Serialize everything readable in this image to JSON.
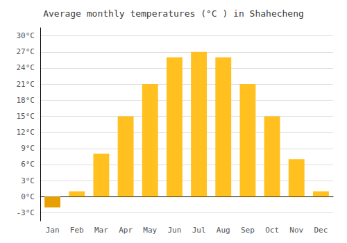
{
  "chart_data": {
    "type": "bar",
    "title": "Average monthly temperatures (°C ) in Shahecheng",
    "categories": [
      "Jan",
      "Feb",
      "Mar",
      "Apr",
      "May",
      "Jun",
      "Jul",
      "Aug",
      "Sep",
      "Oct",
      "Nov",
      "Dec"
    ],
    "values": [
      -2,
      1,
      8,
      15,
      21,
      26,
      27,
      26,
      21,
      15,
      7,
      1
    ],
    "colors": [
      "#E8A000",
      "#FFC020",
      "#FFC020",
      "#FFC020",
      "#FFC020",
      "#FFC020",
      "#FFC020",
      "#FFC020",
      "#FFC020",
      "#FFC020",
      "#FFC020",
      "#FFC020"
    ],
    "ylim": [
      -4.5,
      31.5
    ],
    "yticks": [
      {
        "value": -3,
        "label": "-3°C"
      },
      {
        "value": 0,
        "label": "0°C"
      },
      {
        "value": 3,
        "label": "3°C"
      },
      {
        "value": 6,
        "label": "6°C"
      },
      {
        "value": 9,
        "label": "9°C"
      },
      {
        "value": 12,
        "label": "12°C"
      },
      {
        "value": 15,
        "label": "15°C"
      },
      {
        "value": 18,
        "label": "18°C"
      },
      {
        "value": 21,
        "label": "21°C"
      },
      {
        "value": 24,
        "label": "24°C"
      },
      {
        "value": 27,
        "label": "27°C"
      },
      {
        "value": 30,
        "label": "30°C"
      }
    ],
    "grid": true
  }
}
